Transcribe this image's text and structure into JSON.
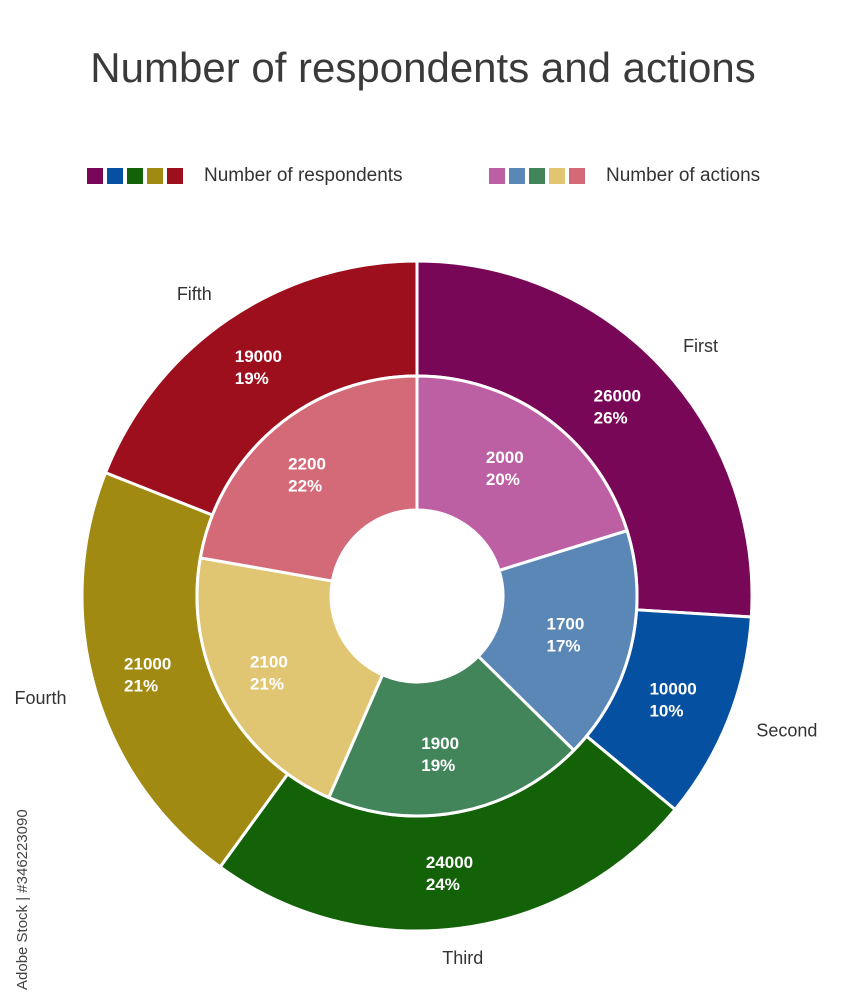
{
  "chart_data": {
    "type": "donut",
    "title": "Number of respondents and actions",
    "legend_placement": "top",
    "series": [
      {
        "name": "Number of respondents",
        "ring": "outer",
        "categories": [
          "First",
          "Second",
          "Third",
          "Fourth",
          "Fifth"
        ],
        "values": [
          26000,
          10000,
          24000,
          21000,
          19000
        ],
        "percent_labels": [
          "26%",
          "10%",
          "24%",
          "21%",
          "19%"
        ],
        "colors": [
          "#780757",
          "#0550a0",
          "#136208",
          "#a08a12",
          "#9e0f1e"
        ]
      },
      {
        "name": "Number of actions",
        "ring": "inner",
        "categories": [
          "First",
          "Second",
          "Third",
          "Fourth",
          "Fifth"
        ],
        "values": [
          2000,
          1700,
          1900,
          2100,
          2200
        ],
        "percent_labels": [
          "20%",
          "17%",
          "19%",
          "21%",
          "22%"
        ],
        "colors": [
          "#bd60a3",
          "#5b87b6",
          "#43855a",
          "#e0c672",
          "#d46a78"
        ]
      }
    ]
  },
  "watermark": "Adobe Stock | #346223090"
}
